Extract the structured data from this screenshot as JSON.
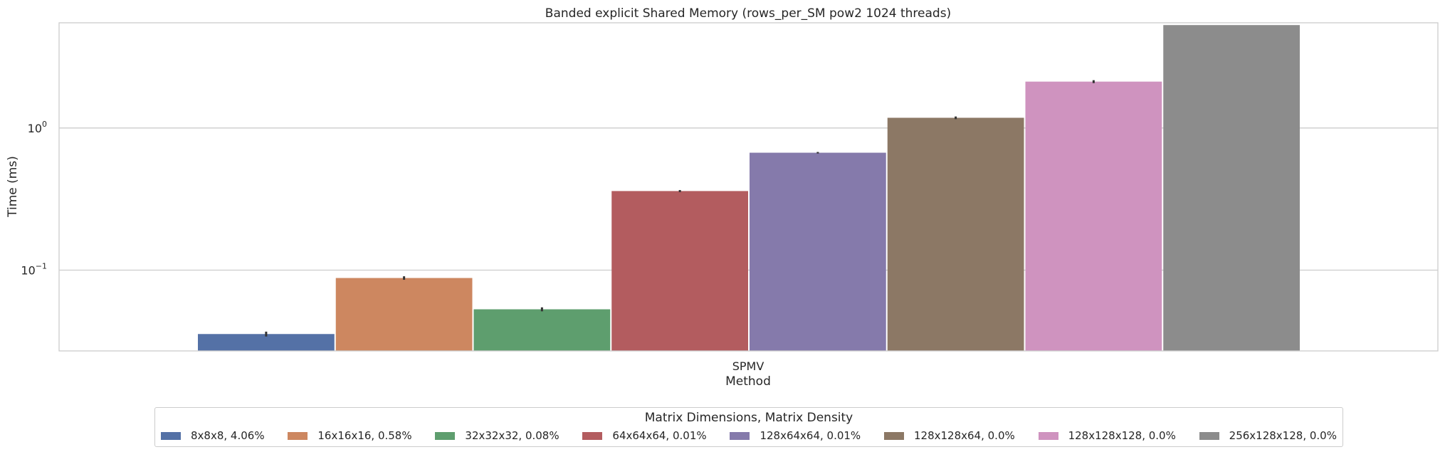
{
  "chart_data": {
    "type": "bar",
    "title": "Banded explicit Shared Memory (rows_per_SM pow2 1024 threads)",
    "xlabel": "Method",
    "ylabel": "Time (ms)",
    "yscale": "log",
    "ylim": [
      0.027,
      5.5
    ],
    "grid": true,
    "categories": [
      "SPMV"
    ],
    "yticks": [
      {
        "value": 1.0,
        "label_base": "10",
        "label_exp": "0"
      },
      {
        "value": 0.1,
        "label_base": "10",
        "label_exp": "−1"
      }
    ],
    "legend": {
      "title": "Matrix Dimensions, Matrix Density",
      "placement": "bottom-center"
    },
    "series": [
      {
        "name": "8x8x8, 4.06%",
        "values": [
          0.0355
        ],
        "err": [
          0.0014
        ],
        "color": "#5471a6"
      },
      {
        "name": "16x16x16, 0.58%",
        "values": [
          0.088
        ],
        "err": [
          0.0025
        ],
        "color": "#cd8760"
      },
      {
        "name": "32x32x32, 0.08%",
        "values": [
          0.053
        ],
        "err": [
          0.0017
        ],
        "color": "#5e9e6e"
      },
      {
        "name": "64x64x64, 0.01%",
        "values": [
          0.36
        ],
        "err": [
          0.006
        ],
        "color": "#b35c5f"
      },
      {
        "name": "128x64x64, 0.01%",
        "values": [
          0.67
        ],
        "err": [
          0.008
        ],
        "color": "#857aab"
      },
      {
        "name": "128x128x64, 0.0%",
        "values": [
          1.18
        ],
        "err": [
          0.025
        ],
        "color": "#8c7865"
      },
      {
        "name": "128x128x128, 0.0%",
        "values": [
          2.12
        ],
        "err": [
          0.05
        ],
        "color": "#cf93bf"
      },
      {
        "name": "256x128x128, 0.0%",
        "values": [
          5.3
        ],
        "err": [
          0.0
        ],
        "color": "#8c8c8c"
      }
    ]
  }
}
